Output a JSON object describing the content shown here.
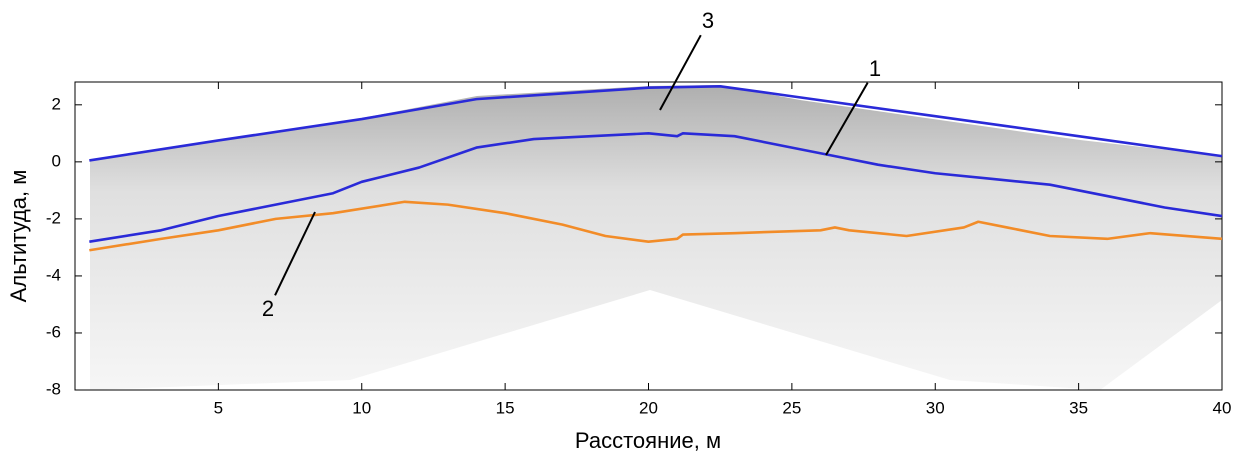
{
  "chart_data": {
    "type": "line",
    "x_label": "Расстояние, м",
    "y_label": "Альтитуда, м",
    "xlim": [
      0,
      40
    ],
    "xticks": [
      5,
      10,
      15,
      20,
      25,
      30,
      35,
      40
    ],
    "ylim": [
      -8,
      2.8
    ],
    "yticks": [
      -8,
      -6,
      -4,
      -2,
      0,
      2
    ],
    "series": [
      {
        "color": "#2a2ad8",
        "x": [
          0.5,
          5,
          10,
          14,
          17,
          20,
          22.5,
          25,
          30,
          35,
          40
        ],
        "values": [
          0.05,
          0.75,
          1.5,
          2.2,
          2.4,
          2.6,
          2.65,
          2.3,
          1.6,
          0.9,
          0.2
        ]
      },
      {
        "color": "#2a2ad8",
        "x": [
          0.5,
          3,
          5,
          7,
          9,
          10,
          12,
          14,
          16,
          18,
          20,
          21,
          21.2,
          23,
          25,
          26.5,
          28,
          30,
          32,
          34,
          36,
          38,
          40
        ],
        "values": [
          -2.8,
          -2.4,
          -1.9,
          -1.5,
          -1.1,
          -0.7,
          -0.2,
          0.5,
          0.8,
          0.9,
          1.0,
          0.9,
          1.0,
          0.9,
          0.5,
          0.2,
          -0.1,
          -0.4,
          -0.6,
          -0.8,
          -1.2,
          -1.6,
          -1.9
        ]
      },
      {
        "color": "#f28c28",
        "x": [
          0.5,
          3,
          5,
          7,
          9,
          11.5,
          13,
          15,
          17,
          18.5,
          20,
          21,
          21.2,
          23,
          26,
          26.5,
          27,
          29,
          31,
          31.5,
          32.5,
          34,
          36,
          37.5,
          40
        ],
        "values": [
          -3.1,
          -2.7,
          -2.4,
          -2.0,
          -1.8,
          -1.4,
          -1.5,
          -1.8,
          -2.2,
          -2.6,
          -2.8,
          -2.7,
          -2.55,
          -2.5,
          -2.4,
          -2.3,
          -2.4,
          -2.6,
          -2.3,
          -2.1,
          -2.3,
          -2.6,
          -2.7,
          -2.5,
          -2.7
        ]
      }
    ],
    "annotations": [
      "1",
      "2",
      "3"
    ]
  }
}
